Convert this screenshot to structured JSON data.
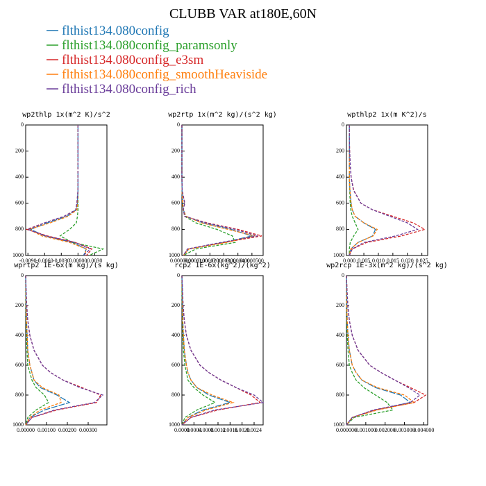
{
  "title": "CLUBB VAR at180E,60N",
  "chart_data": [
    {
      "type": "line",
      "title": "wp2thlp  1x(m^2 K)/s^2",
      "y_inverted": true,
      "y": [
        0,
        100,
        200,
        300,
        400,
        500,
        600,
        650,
        700,
        750,
        800,
        850,
        900,
        950,
        1000
      ],
      "xlim": [
        -0.0094,
        0.0052
      ],
      "ylim": [
        0,
        1000
      ],
      "xticks": [
        {
          "value": -0.009,
          "label": "-0.0090"
        },
        {
          "value": -0.006,
          "label": "-0.0060"
        },
        {
          "value": -0.003,
          "label": "-0.0030"
        },
        {
          "value": 0,
          "label": "0.00000"
        },
        {
          "value": 0.003,
          "label": "0.0030"
        }
      ],
      "yticks": [
        0,
        200,
        400,
        600,
        800,
        1000
      ],
      "series": [
        {
          "name": "flthist134.080config",
          "color": "#1f77b4",
          "values": [
            0,
            0,
            0,
            0,
            0,
            0,
            -0.0001,
            -0.0003,
            -0.002,
            -0.0055,
            -0.0085,
            -0.006,
            -0.001,
            0.0015,
            0.001
          ]
        },
        {
          "name": "flthist134.080config_paramsonly",
          "color": "#2ca02c",
          "values": [
            0,
            0,
            0,
            0,
            0,
            0,
            0,
            0,
            -0.0001,
            -0.0003,
            -0.0015,
            -0.0032,
            -0.001,
            0.0045,
            0.002
          ]
        },
        {
          "name": "flthist134.080config_e3sm",
          "color": "#d62728",
          "values": [
            0,
            0,
            0,
            0,
            0,
            0,
            -0.0002,
            -0.0004,
            -0.0025,
            -0.006,
            -0.0092,
            -0.0055,
            -0.0005,
            0.0025,
            0.0015
          ]
        },
        {
          "name": "flthist134.080config_smoothHeaviside",
          "color": "#ff7f0e",
          "values": [
            0,
            0,
            0,
            0,
            0,
            0,
            -0.0001,
            -0.0002,
            -0.0018,
            -0.005,
            -0.0088,
            -0.0065,
            -0.0015,
            0.0015,
            0.0012
          ]
        },
        {
          "name": "flthist134.080config_rich",
          "color": "#6a3d9a",
          "values": [
            0,
            0,
            0,
            0,
            0,
            0,
            -0.0002,
            -0.0004,
            -0.0025,
            -0.006,
            -0.009,
            -0.0058,
            -0.0005,
            0.0022,
            0.001
          ]
        }
      ]
    },
    {
      "type": "line",
      "title": "wp2rtp  1x(m^2 kg)/(s^2 kg)",
      "y_inverted": true,
      "y": [
        0,
        100,
        200,
        300,
        400,
        500,
        600,
        650,
        700,
        750,
        800,
        850,
        900,
        950,
        1000
      ],
      "xlim": [
        0,
        5.8e-05
      ],
      "ylim": [
        0,
        1000
      ],
      "xticks": [
        {
          "value": 0,
          "label": "0.0000000"
        },
        {
          "value": 1e-05,
          "label": "0.0000100"
        },
        {
          "value": 2e-05,
          "label": "0.0000200"
        },
        {
          "value": 3e-05,
          "label": "0.0000300"
        },
        {
          "value": 4e-05,
          "label": "0.0000400"
        },
        {
          "value": 5e-05,
          "label": "0.0000500"
        }
      ],
      "yticks": [
        0,
        200,
        400,
        600,
        800,
        1000
      ],
      "series": [
        {
          "name": "flthist134.080config",
          "color": "#1f77b4",
          "values": [
            0,
            0,
            0,
            0,
            0,
            1e-07,
            5e-07,
            1e-06,
            3e-06,
            1.5e-05,
            3.5e-05,
            5e-05,
            3e-05,
            5e-06,
            1e-06
          ]
        },
        {
          "name": "flthist134.080config_paramsonly",
          "color": "#2ca02c",
          "values": [
            0,
            0,
            0,
            0,
            0,
            1e-07,
            5e-07,
            1e-06,
            2e-06,
            1e-05,
            2.5e-05,
            3.6e-05,
            3.8e-05,
            1e-05,
            1e-06
          ]
        },
        {
          "name": "flthist134.080config_e3sm",
          "color": "#d62728",
          "values": [
            0,
            0,
            0,
            0,
            0,
            2e-07,
            2e-06,
            1e-06,
            2e-06,
            1.8e-05,
            4e-05,
            5.7e-05,
            3e-05,
            4e-06,
            1e-06
          ]
        },
        {
          "name": "flthist134.080config_smoothHeaviside",
          "color": "#ff7f0e",
          "values": [
            0,
            0,
            0,
            0,
            0,
            1e-07,
            5e-07,
            1e-06,
            3e-06,
            1.4e-05,
            3.3e-05,
            5.2e-05,
            3.2e-05,
            5e-06,
            1e-06
          ]
        },
        {
          "name": "flthist134.080config_rich",
          "color": "#6a3d9a",
          "values": [
            0,
            0,
            0,
            0,
            0,
            2e-07,
            2e-06,
            1e-06,
            2e-06,
            1.7e-05,
            3.8e-05,
            5.4e-05,
            2.8e-05,
            4e-06,
            1e-06
          ]
        }
      ]
    },
    {
      "type": "line",
      "title": "wpthlp2  1x(m K^2)/s",
      "y_inverted": true,
      "y": [
        0,
        100,
        200,
        300,
        400,
        500,
        600,
        650,
        700,
        750,
        800,
        850,
        900,
        950,
        1000
      ],
      "xlim": [
        -0.001,
        0.027
      ],
      "ylim": [
        0,
        1000
      ],
      "xticks": [
        {
          "value": 0,
          "label": "0.000"
        },
        0.005,
        {
          "value": 0.01,
          "label": "0.010"
        },
        0.015,
        {
          "value": 0.02,
          "label": "0.020"
        },
        0.025
      ],
      "yticks": [
        0,
        200,
        400,
        600,
        800,
        1000
      ],
      "series": [
        {
          "name": "flthist134.080config",
          "color": "#1f77b4",
          "values": [
            0,
            0,
            0,
            0,
            0,
            0.0002,
            0.0006,
            0.001,
            0.002,
            0.005,
            0.009,
            0.008,
            0.003,
            0.0005,
            0
          ]
        },
        {
          "name": "flthist134.080config_paramsonly",
          "color": "#2ca02c",
          "values": [
            0,
            0,
            0,
            0,
            0,
            0.0001,
            0.0003,
            0.0005,
            0.001,
            0.002,
            0.003,
            0.0015,
            0.0003,
            0,
            0
          ]
        },
        {
          "name": "flthist134.080config_e3sm",
          "color": "#d62728",
          "values": [
            0,
            0,
            0.0001,
            0.0003,
            0.0006,
            0.0015,
            0.004,
            0.008,
            0.015,
            0.022,
            0.026,
            0.018,
            0.006,
            0.001,
            0
          ]
        },
        {
          "name": "flthist134.080config_smoothHeaviside",
          "color": "#ff7f0e",
          "values": [
            0,
            0,
            0,
            0,
            0,
            0.0002,
            0.0006,
            0.001,
            0.002,
            0.005,
            0.0096,
            0.0082,
            0.003,
            0.0005,
            0
          ]
        },
        {
          "name": "flthist134.080config_rich",
          "color": "#6a3d9a",
          "values": [
            0,
            0,
            0.0001,
            0.0003,
            0.0006,
            0.0014,
            0.004,
            0.008,
            0.014,
            0.02,
            0.0235,
            0.016,
            0.005,
            0.001,
            0
          ]
        }
      ]
    },
    {
      "type": "line",
      "title": "wprtp2  1E-6x(m kg)/(s kg)",
      "y_inverted": true,
      "y": [
        0,
        100,
        200,
        300,
        400,
        500,
        600,
        650,
        700,
        750,
        800,
        850,
        900,
        950,
        1000
      ],
      "xlim": [
        0,
        0.0039
      ],
      "ylim": [
        0,
        1000
      ],
      "xticks": [
        {
          "value": 0,
          "label": "0.00000"
        },
        {
          "value": 0.001,
          "label": "0.00100"
        },
        {
          "value": 0.002,
          "label": "0.00200"
        },
        {
          "value": 0.003,
          "label": "0.00300"
        }
      ],
      "yticks": [
        0,
        200,
        400,
        600,
        800,
        1000
      ],
      "series": [
        {
          "name": "flthist134.080config",
          "color": "#1f77b4",
          "values": [
            0,
            1e-05,
            2e-05,
            4e-05,
            7e-05,
            0.0001,
            0.0002,
            0.0003,
            0.0004,
            0.0007,
            0.0015,
            0.0021,
            0.0009,
            0.0002,
            0
          ]
        },
        {
          "name": "flthist134.080config_paramsonly",
          "color": "#2ca02c",
          "values": [
            0,
            0,
            1e-05,
            2e-05,
            4e-05,
            6e-05,
            0.0001,
            0.0002,
            0.0003,
            0.0005,
            0.0009,
            0.0011,
            0.0005,
            0.0001,
            0
          ]
        },
        {
          "name": "flthist134.080config_e3sm",
          "color": "#d62728",
          "values": [
            0,
            2e-05,
            5e-05,
            0.0001,
            0.0002,
            0.0004,
            0.0008,
            0.0012,
            0.0018,
            0.0027,
            0.0036,
            0.0034,
            0.0015,
            0.0003,
            0
          ]
        },
        {
          "name": "flthist134.080config_smoothHeaviside",
          "color": "#ff7f0e",
          "values": [
            0,
            1e-05,
            2e-05,
            4e-05,
            7e-05,
            0.0001,
            0.0002,
            0.0003,
            0.0004,
            0.0008,
            0.0016,
            0.0017,
            0.0007,
            0.0002,
            0
          ]
        },
        {
          "name": "flthist134.080config_rich",
          "color": "#6a3d9a",
          "values": [
            0,
            2e-05,
            5e-05,
            0.0001,
            0.0002,
            0.0004,
            0.0008,
            0.0012,
            0.0018,
            0.0026,
            0.0037,
            0.0033,
            0.0014,
            0.0003,
            0
          ]
        }
      ]
    },
    {
      "type": "line",
      "title": "rcp2  1E-6x(kg^2)/(kg^2)",
      "y_inverted": true,
      "y": [
        0,
        100,
        200,
        300,
        400,
        500,
        600,
        650,
        700,
        750,
        800,
        850,
        900,
        950,
        1000
      ],
      "xlim": [
        0,
        0.0027
      ],
      "ylim": [
        0,
        1000
      ],
      "xticks": [
        {
          "value": 0,
          "label": "0.0000"
        },
        0.0004,
        0.0008,
        0.0012,
        0.0016,
        {
          "value": 0.002,
          "label": "0.0020"
        },
        0.0024
      ],
      "yticks": [
        0,
        200,
        400,
        600,
        800,
        1000
      ],
      "series": [
        {
          "name": "flthist134.080config",
          "color": "#1f77b4",
          "values": [
            0,
            1e-05,
            2e-05,
            3e-05,
            5e-05,
            8e-05,
            0.00015,
            0.0002,
            0.0003,
            0.0005,
            0.0009,
            0.0016,
            0.0007,
            0.0002,
            0
          ]
        },
        {
          "name": "flthist134.080config_paramsonly",
          "color": "#2ca02c",
          "values": [
            0,
            0,
            1e-05,
            2e-05,
            3e-05,
            5e-05,
            0.0001,
            0.00015,
            0.0002,
            0.0004,
            0.0007,
            0.0011,
            0.0005,
            0.0001,
            0
          ]
        },
        {
          "name": "flthist134.080config_e3sm",
          "color": "#d62728",
          "values": [
            0,
            2e-05,
            4e-05,
            8e-05,
            0.00015,
            0.0003,
            0.0006,
            0.0009,
            0.0013,
            0.0018,
            0.0023,
            0.0026,
            0.0012,
            0.0003,
            0
          ]
        },
        {
          "name": "flthist134.080config_smoothHeaviside",
          "color": "#ff7f0e",
          "values": [
            0,
            1e-05,
            2e-05,
            3e-05,
            5e-05,
            8e-05,
            0.00015,
            0.0002,
            0.0003,
            0.0005,
            0.001,
            0.0017,
            0.0008,
            0.0002,
            0
          ]
        },
        {
          "name": "flthist134.080config_rich",
          "color": "#6a3d9a",
          "values": [
            0,
            2e-05,
            4e-05,
            8e-05,
            0.00015,
            0.0003,
            0.0006,
            0.0009,
            0.0013,
            0.0018,
            0.0024,
            0.0027,
            0.0011,
            0.0003,
            0
          ]
        }
      ]
    },
    {
      "type": "line",
      "title": "wp2rcp  1E-3x(m^2 kg)/(s^2 kg)",
      "y_inverted": true,
      "y": [
        0,
        100,
        200,
        300,
        400,
        500,
        600,
        650,
        700,
        750,
        800,
        850,
        900,
        950,
        1000
      ],
      "xlim": [
        0,
        0.0042
      ],
      "ylim": [
        0,
        1000
      ],
      "xticks": [
        {
          "value": 0,
          "label": "0.000000"
        },
        {
          "value": 0.001,
          "label": "0.001000"
        },
        {
          "value": 0.002,
          "label": "0.002000"
        },
        {
          "value": 0.003,
          "label": "0.003000"
        },
        {
          "value": 0.004,
          "label": "0.004000"
        }
      ],
      "yticks": [
        0,
        200,
        400,
        600,
        800,
        1000
      ],
      "series": [
        {
          "name": "flthist134.080config",
          "color": "#1f77b4",
          "values": [
            0,
            1e-05,
            2e-05,
            4e-05,
            8e-05,
            0.00015,
            0.0003,
            0.0005,
            0.0008,
            0.0015,
            0.0028,
            0.0033,
            0.0015,
            0.0003,
            0
          ]
        },
        {
          "name": "flthist134.080config_paramsonly",
          "color": "#2ca02c",
          "values": [
            0,
            0,
            1e-05,
            2e-05,
            4e-05,
            8e-05,
            0.00015,
            0.0003,
            0.0005,
            0.0009,
            0.0015,
            0.0021,
            0.0024,
            0.0004,
            0
          ]
        },
        {
          "name": "flthist134.080config_e3sm",
          "color": "#d62728",
          "values": [
            0,
            3e-05,
            7e-05,
            0.00015,
            0.0003,
            0.0006,
            0.0012,
            0.0018,
            0.0025,
            0.0033,
            0.0041,
            0.0035,
            0.0015,
            0.0003,
            0
          ]
        },
        {
          "name": "flthist134.080config_smoothHeaviside",
          "color": "#ff7f0e",
          "values": [
            0,
            1e-05,
            2e-05,
            4e-05,
            8e-05,
            0.00015,
            0.0003,
            0.0005,
            0.0008,
            0.0016,
            0.003,
            0.0035,
            0.0016,
            0.0003,
            0
          ]
        },
        {
          "name": "flthist134.080config_rich",
          "color": "#6a3d9a",
          "values": [
            0,
            3e-05,
            7e-05,
            0.00015,
            0.0003,
            0.0006,
            0.0012,
            0.0018,
            0.0025,
            0.0032,
            0.0038,
            0.0033,
            0.0014,
            0.0003,
            0
          ]
        }
      ]
    }
  ]
}
